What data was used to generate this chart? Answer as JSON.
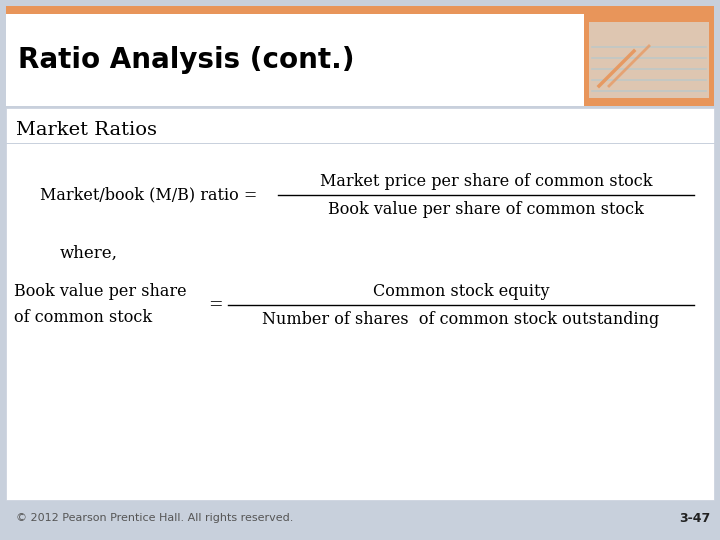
{
  "title": "Ratio Analysis (cont.)",
  "subtitle": "Market Ratios",
  "orange_color": "#E8955A",
  "header_text_color": "#000000",
  "body_bg": "#FFFFFF",
  "slide_border_color": "#C8D0DC",
  "footer_text": "© 2012 Pearson Prentice Hall. All rights reserved.",
  "footer_page": "3-47",
  "title_fontsize": 20,
  "subtitle_fontsize": 14,
  "formula_fontsize": 11.5,
  "footer_fontsize": 8,
  "where_text": "where,",
  "mb_label": "Market/book (M/B) ratio =",
  "mb_numerator": "Market price per share of common stock",
  "mb_denominator": "Book value per share of common stock",
  "bv_label_line1": "Book value per share",
  "bv_label_line2": "of common stock",
  "bv_equals": "=",
  "bv_numerator": "Common stock equity",
  "bv_denominator": "Number of shares  of common stock outstanding"
}
